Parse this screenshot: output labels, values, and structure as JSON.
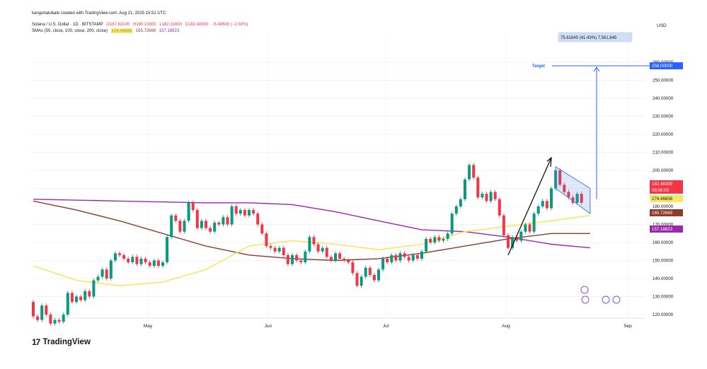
{
  "header": {
    "credit": "kanguhalubale created with TradingView.com, Aug 21, 2025 15:51 UTC",
    "symbol": "Solana / U.S. Dollar · 1D · BITSTAMP",
    "ohlc": {
      "o_label": "O",
      "o": "187.63100",
      "h_label": "H",
      "h": "190.10300",
      "l_label": "L",
      "l": "182.31600",
      "c_label": "C",
      "c": "182.48300",
      "change": "−5.48600 (−2.92%)"
    },
    "sma_label": "SMAs (50, close, 100, close, 200, close)",
    "sma_values": [
      "174.46658",
      "165.72669",
      "157.18823"
    ]
  },
  "colors": {
    "up": "#089981",
    "down": "#f23645",
    "sma50": "#f5e663",
    "sma100": "#8d3b2b",
    "sma200": "#9c27b0",
    "target": "#2962ff",
    "channel": "#4a7fd8"
  },
  "axis": {
    "currency": "USD",
    "price_labels": [
      "260.00000",
      "250.00000",
      "240.00000",
      "230.00000",
      "220.00000",
      "210.00000",
      "200.00000",
      "190.00000",
      "180.00000",
      "170.00000",
      "160.00000",
      "150.00000",
      "140.00000",
      "130.00000",
      "120.00000"
    ],
    "month_labels": [
      "May",
      "Jun",
      "Jul",
      "Aug",
      "Sep"
    ]
  },
  "badges": {
    "target": "258.00000",
    "price": "182.48300",
    "countdown": "08:08:03",
    "sma50": "174.46658",
    "sma100": "165.72669",
    "sma200": "157.18823"
  },
  "annotations": {
    "target_label": "Target",
    "measure_text": "75.61645 (41.43%) 7,561,645"
  },
  "branding": {
    "logo_mark": "17",
    "logo_text": "TradingView"
  },
  "chart_data": {
    "type": "candlestick",
    "title": "Solana / U.S. Dollar · 1D · BITSTAMP",
    "ylabel": "USD",
    "ylim": [
      113,
      268
    ],
    "x_ticks": [
      "May",
      "Jun",
      "Jul",
      "Aug",
      "Sep"
    ],
    "grid": true,
    "candles": [
      {
        "o": 127,
        "c": 119
      },
      {
        "o": 119,
        "c": 117
      },
      {
        "o": 117,
        "c": 125
      },
      {
        "o": 125,
        "c": 120
      },
      {
        "o": 120,
        "c": 115
      },
      {
        "o": 115,
        "c": 117
      },
      {
        "o": 117,
        "c": 116
      },
      {
        "o": 116,
        "c": 120
      },
      {
        "o": 120,
        "c": 132
      },
      {
        "o": 132,
        "c": 127
      },
      {
        "o": 127,
        "c": 130
      },
      {
        "o": 130,
        "c": 128
      },
      {
        "o": 128,
        "c": 133
      },
      {
        "o": 133,
        "c": 130
      },
      {
        "o": 130,
        "c": 139
      },
      {
        "o": 139,
        "c": 141
      },
      {
        "o": 141,
        "c": 145
      },
      {
        "o": 145,
        "c": 140
      },
      {
        "o": 140,
        "c": 150
      },
      {
        "o": 150,
        "c": 154
      },
      {
        "o": 154,
        "c": 153
      },
      {
        "o": 153,
        "c": 151
      },
      {
        "o": 151,
        "c": 149
      },
      {
        "o": 149,
        "c": 152
      },
      {
        "o": 152,
        "c": 148
      },
      {
        "o": 148,
        "c": 151
      },
      {
        "o": 151,
        "c": 149
      },
      {
        "o": 149,
        "c": 147
      },
      {
        "o": 147,
        "c": 150
      },
      {
        "o": 150,
        "c": 147
      },
      {
        "o": 147,
        "c": 149
      },
      {
        "o": 149,
        "c": 163
      },
      {
        "o": 163,
        "c": 175
      },
      {
        "o": 175,
        "c": 172
      },
      {
        "o": 172,
        "c": 166
      },
      {
        "o": 166,
        "c": 172
      },
      {
        "o": 172,
        "c": 182
      },
      {
        "o": 182,
        "c": 178
      },
      {
        "o": 178,
        "c": 168
      },
      {
        "o": 168,
        "c": 172
      },
      {
        "o": 172,
        "c": 168
      },
      {
        "o": 168,
        "c": 166
      },
      {
        "o": 166,
        "c": 171
      },
      {
        "o": 171,
        "c": 170
      },
      {
        "o": 170,
        "c": 174
      },
      {
        "o": 174,
        "c": 170
      },
      {
        "o": 170,
        "c": 180
      },
      {
        "o": 180,
        "c": 176
      },
      {
        "o": 176,
        "c": 178
      },
      {
        "o": 178,
        "c": 175
      },
      {
        "o": 175,
        "c": 178
      },
      {
        "o": 178,
        "c": 176
      },
      {
        "o": 176,
        "c": 170
      },
      {
        "o": 170,
        "c": 165
      },
      {
        "o": 165,
        "c": 158
      },
      {
        "o": 158,
        "c": 157
      },
      {
        "o": 157,
        "c": 155
      },
      {
        "o": 155,
        "c": 157
      },
      {
        "o": 157,
        "c": 153
      },
      {
        "o": 153,
        "c": 148
      },
      {
        "o": 148,
        "c": 153
      },
      {
        "o": 153,
        "c": 150
      },
      {
        "o": 150,
        "c": 149
      },
      {
        "o": 149,
        "c": 155
      },
      {
        "o": 155,
        "c": 163
      },
      {
        "o": 163,
        "c": 159
      },
      {
        "o": 159,
        "c": 155
      },
      {
        "o": 155,
        "c": 157
      },
      {
        "o": 157,
        "c": 152
      },
      {
        "o": 152,
        "c": 150
      },
      {
        "o": 150,
        "c": 154
      },
      {
        "o": 154,
        "c": 151
      },
      {
        "o": 151,
        "c": 150
      },
      {
        "o": 150,
        "c": 149
      },
      {
        "o": 149,
        "c": 143
      },
      {
        "o": 143,
        "c": 136
      },
      {
        "o": 136,
        "c": 141
      },
      {
        "o": 141,
        "c": 146
      },
      {
        "o": 146,
        "c": 142
      },
      {
        "o": 142,
        "c": 139
      },
      {
        "o": 139,
        "c": 145
      },
      {
        "o": 145,
        "c": 151
      },
      {
        "o": 151,
        "c": 149
      },
      {
        "o": 149,
        "c": 153
      },
      {
        "o": 153,
        "c": 150
      },
      {
        "o": 150,
        "c": 154
      },
      {
        "o": 154,
        "c": 152
      },
      {
        "o": 152,
        "c": 150
      },
      {
        "o": 150,
        "c": 153
      },
      {
        "o": 153,
        "c": 151
      },
      {
        "o": 151,
        "c": 155
      },
      {
        "o": 155,
        "c": 162
      },
      {
        "o": 162,
        "c": 160
      },
      {
        "o": 160,
        "c": 163
      },
      {
        "o": 163,
        "c": 161
      },
      {
        "o": 161,
        "c": 162
      },
      {
        "o": 162,
        "c": 165
      },
      {
        "o": 165,
        "c": 176
      },
      {
        "o": 176,
        "c": 180
      },
      {
        "o": 180,
        "c": 184
      },
      {
        "o": 184,
        "c": 195
      },
      {
        "o": 195,
        "c": 203
      },
      {
        "o": 203,
        "c": 196
      },
      {
        "o": 196,
        "c": 185
      },
      {
        "o": 185,
        "c": 187
      },
      {
        "o": 187,
        "c": 183
      },
      {
        "o": 183,
        "c": 188
      },
      {
        "o": 188,
        "c": 184
      },
      {
        "o": 184,
        "c": 175
      },
      {
        "o": 175,
        "c": 164
      },
      {
        "o": 164,
        "c": 157
      },
      {
        "o": 157,
        "c": 163
      },
      {
        "o": 163,
        "c": 161
      },
      {
        "o": 161,
        "c": 166
      },
      {
        "o": 166,
        "c": 170
      },
      {
        "o": 170,
        "c": 166
      },
      {
        "o": 166,
        "c": 176
      },
      {
        "o": 176,
        "c": 180
      },
      {
        "o": 180,
        "c": 183
      },
      {
        "o": 183,
        "c": 179
      },
      {
        "o": 179,
        "c": 190
      },
      {
        "o": 190,
        "c": 200
      },
      {
        "o": 200,
        "c": 192
      },
      {
        "o": 192,
        "c": 188
      },
      {
        "o": 188,
        "c": 185
      },
      {
        "o": 185,
        "c": 182
      },
      {
        "o": 182,
        "c": 187
      },
      {
        "o": 187,
        "c": 182
      }
    ],
    "sma50": [
      [
        0,
        147
      ],
      [
        10,
        139
      ],
      [
        20,
        136
      ],
      [
        30,
        138
      ],
      [
        40,
        145
      ],
      [
        50,
        158
      ],
      [
        60,
        161
      ],
      [
        70,
        159
      ],
      [
        80,
        156
      ],
      [
        90,
        159
      ],
      [
        100,
        166
      ],
      [
        110,
        169
      ],
      [
        120,
        172
      ],
      [
        129,
        175
      ]
    ],
    "sma100": [
      [
        0,
        183
      ],
      [
        10,
        178
      ],
      [
        20,
        172
      ],
      [
        30,
        165
      ],
      [
        40,
        158
      ],
      [
        50,
        153
      ],
      [
        60,
        151
      ],
      [
        70,
        150
      ],
      [
        80,
        151
      ],
      [
        90,
        154
      ],
      [
        100,
        158
      ],
      [
        110,
        162
      ],
      [
        120,
        165
      ],
      [
        129,
        165
      ]
    ],
    "sma200": [
      [
        0,
        184
      ],
      [
        20,
        183
      ],
      [
        40,
        182
      ],
      [
        50,
        182
      ],
      [
        60,
        181
      ],
      [
        70,
        177
      ],
      [
        80,
        172
      ],
      [
        90,
        167
      ],
      [
        100,
        166
      ],
      [
        110,
        163
      ],
      [
        120,
        159
      ],
      [
        129,
        157
      ]
    ]
  }
}
